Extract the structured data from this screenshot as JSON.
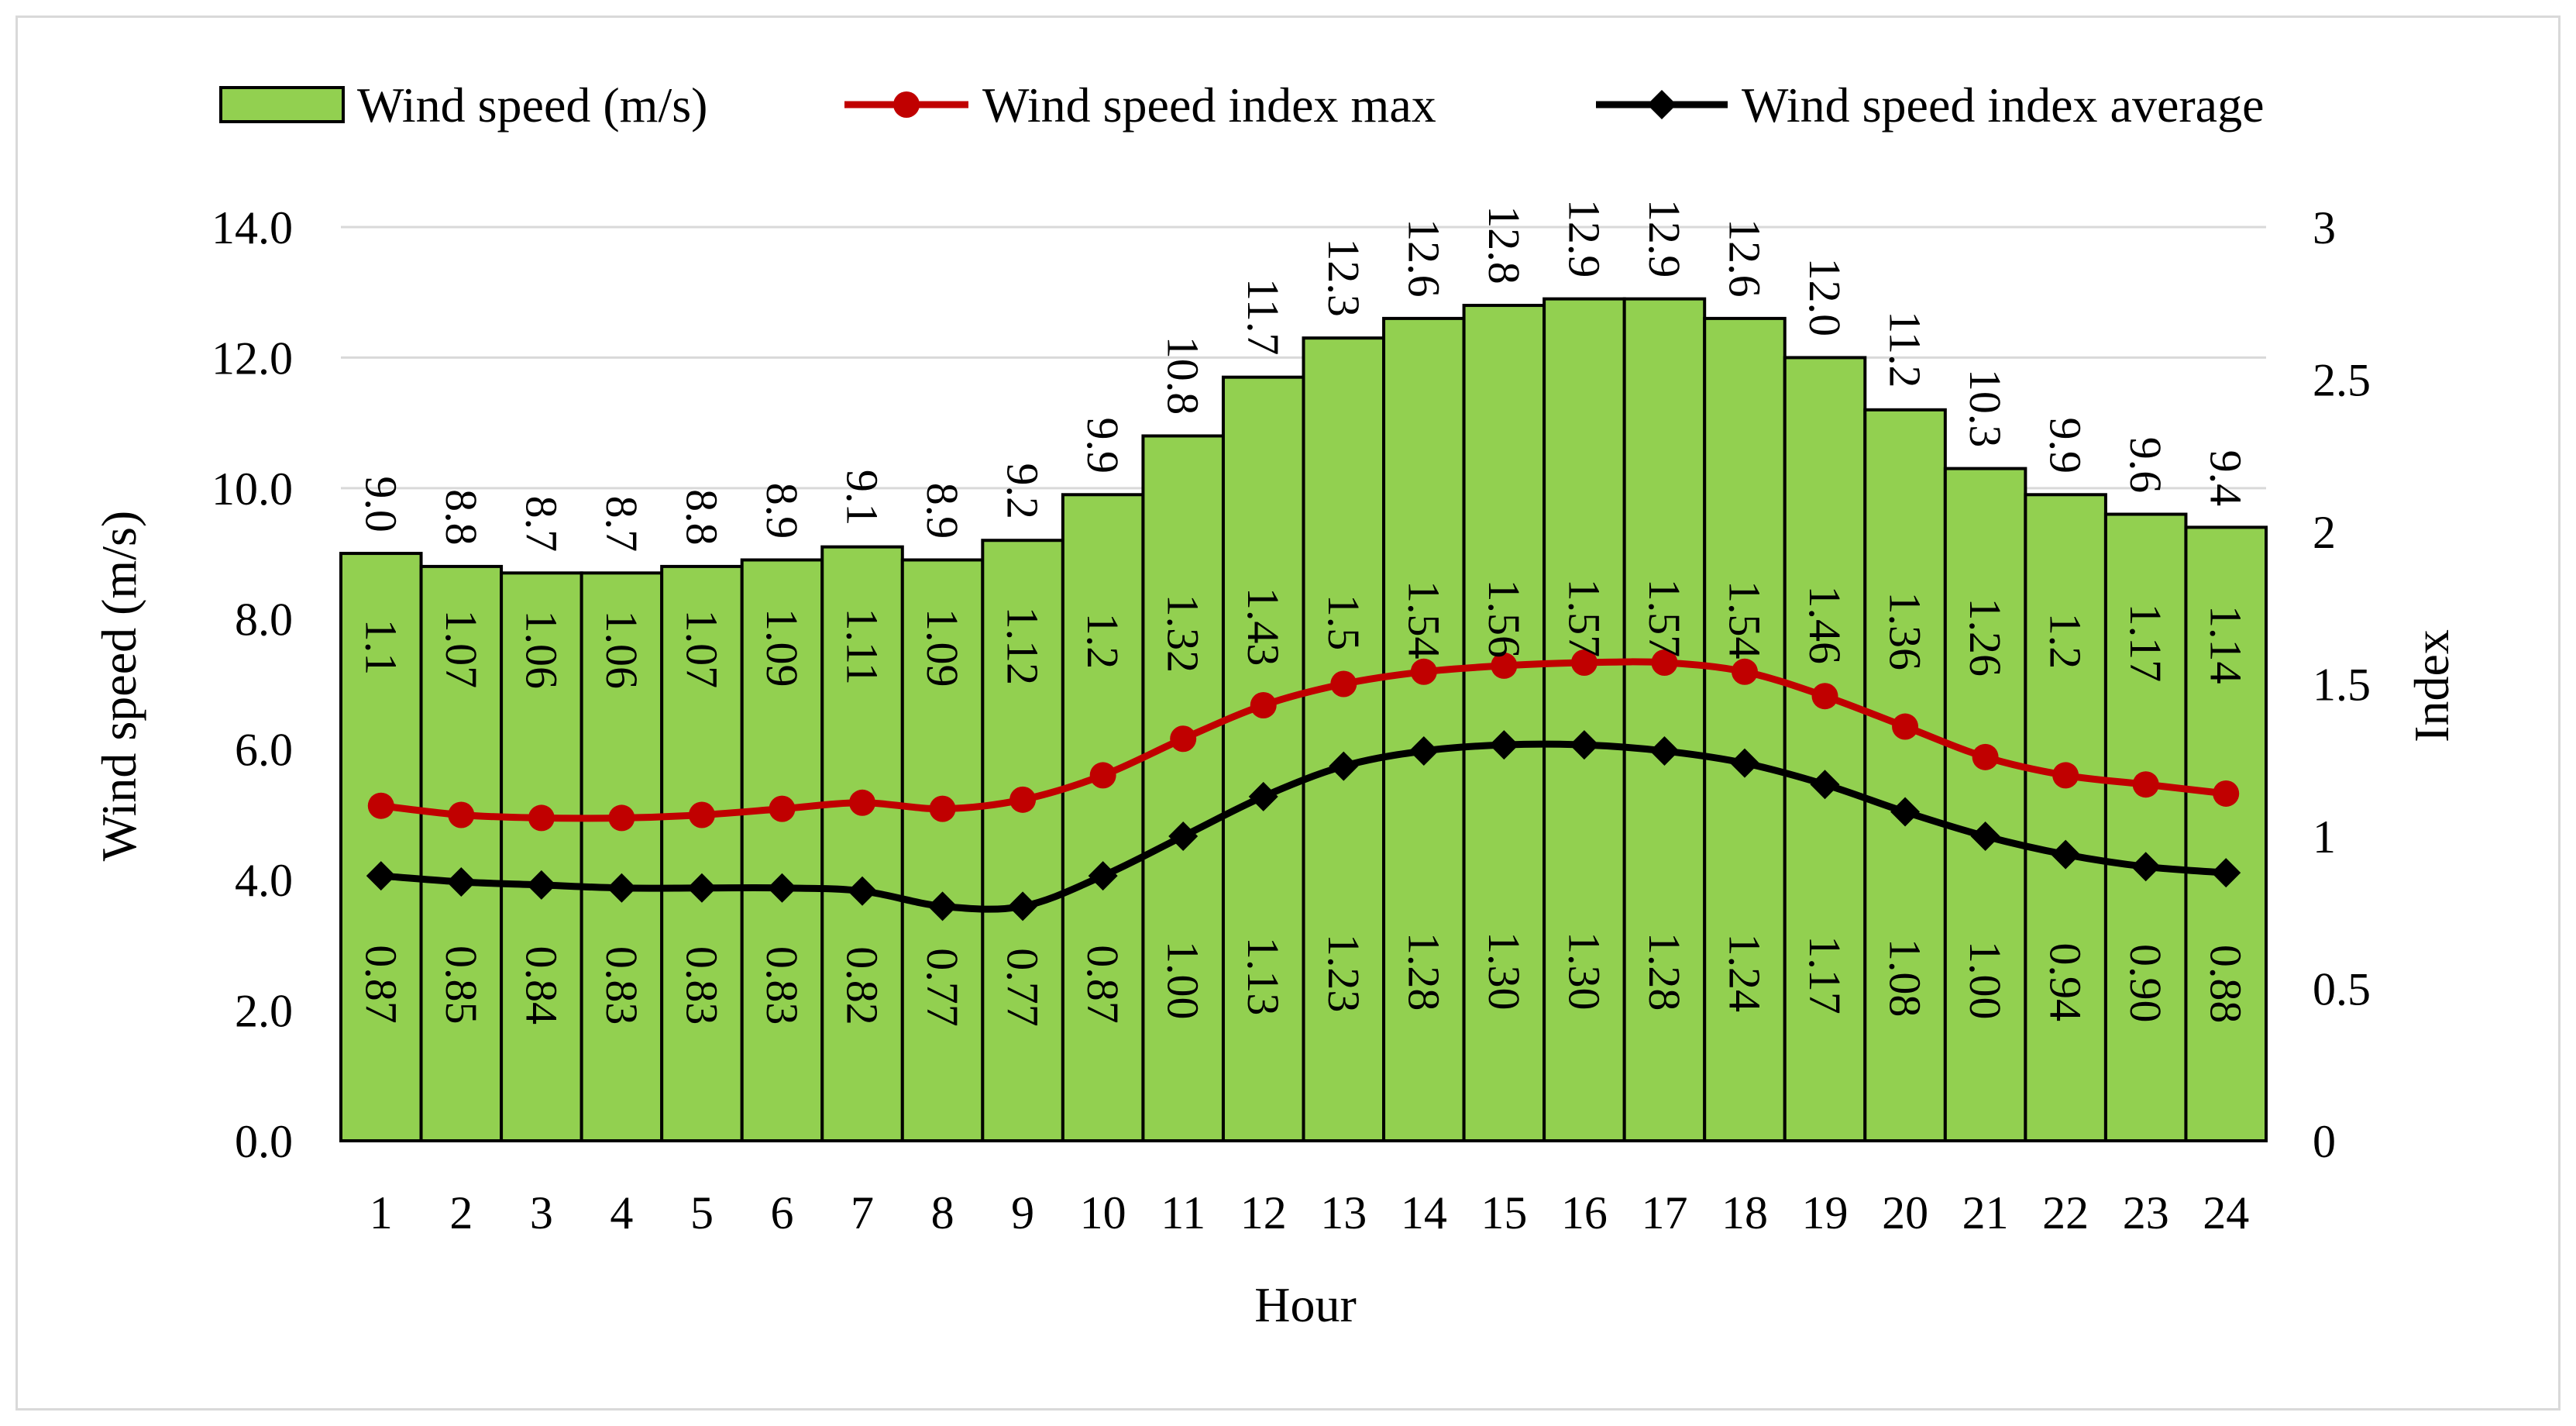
{
  "chart_data": {
    "type": "bar",
    "title": "",
    "xlabel": "Hour",
    "ylabel": "Wind speed (m/s)",
    "y2label": "Index",
    "ylim": [
      0,
      14
    ],
    "y2lim": [
      0,
      3
    ],
    "yticks": [
      "0.0",
      "2.0",
      "4.0",
      "6.0",
      "8.0",
      "10.0",
      "12.0",
      "14.0"
    ],
    "y2ticks": [
      "0",
      "0.5",
      "1",
      "1.5",
      "2",
      "2.5",
      "3"
    ],
    "grid": true,
    "legend_position": "top",
    "categories": [
      "1",
      "2",
      "3",
      "4",
      "5",
      "6",
      "7",
      "8",
      "9",
      "10",
      "11",
      "12",
      "13",
      "14",
      "15",
      "16",
      "17",
      "18",
      "19",
      "20",
      "21",
      "22",
      "23",
      "24"
    ],
    "series": [
      {
        "name": "Wind speed (m/s)",
        "kind": "bar",
        "axis": "left",
        "color": "#92d050",
        "values": [
          9.0,
          8.8,
          8.7,
          8.7,
          8.8,
          8.9,
          9.1,
          8.9,
          9.2,
          9.9,
          10.8,
          11.7,
          12.3,
          12.6,
          12.8,
          12.9,
          12.9,
          12.6,
          12.0,
          11.2,
          10.3,
          9.9,
          9.6,
          9.4
        ],
        "labels": [
          "9.0",
          "8.8",
          "8.7",
          "8.7",
          "8.8",
          "8.9",
          "9.1",
          "8.9",
          "9.2",
          "9.9",
          "10.8",
          "11.7",
          "12.3",
          "12.6",
          "12.8",
          "12.9",
          "12.9",
          "12.6",
          "12.0",
          "11.2",
          "10.3",
          "9.9",
          "9.6",
          "9.4"
        ]
      },
      {
        "name": "Wind speed  index max",
        "kind": "line",
        "axis": "right",
        "color": "#c00000",
        "marker": "circle",
        "values": [
          1.1,
          1.07,
          1.06,
          1.06,
          1.07,
          1.09,
          1.11,
          1.09,
          1.12,
          1.2,
          1.32,
          1.43,
          1.5,
          1.54,
          1.56,
          1.57,
          1.57,
          1.54,
          1.46,
          1.36,
          1.26,
          1.2,
          1.17,
          1.14
        ],
        "labels": [
          "1.1",
          "1.07",
          "1.06",
          "1.06",
          "1.07",
          "1.09",
          "1.11",
          "1.09",
          "1.12",
          "1.2",
          "1.32",
          "1.43",
          "1.5",
          "1.54",
          "1.56",
          "1.57",
          "1.57",
          "1.54",
          "1.46",
          "1.36",
          "1.26",
          "1.2",
          "1.17",
          "1.14"
        ]
      },
      {
        "name": "Wind speed index average",
        "kind": "line",
        "axis": "right",
        "color": "#000000",
        "marker": "diamond",
        "values": [
          0.87,
          0.85,
          0.84,
          0.83,
          0.83,
          0.83,
          0.82,
          0.77,
          0.77,
          0.87,
          1.0,
          1.13,
          1.23,
          1.28,
          1.3,
          1.3,
          1.28,
          1.24,
          1.17,
          1.08,
          1.0,
          0.94,
          0.9,
          0.88
        ],
        "labels": [
          "0.87",
          "0.85",
          "0.84",
          "0.83",
          "0.83",
          "0.83",
          "0.82",
          "0.77",
          "0.77",
          "0.87",
          "1.00",
          "1.13",
          "1.23",
          "1.28",
          "1.30",
          "1.30",
          "1.28",
          "1.24",
          "1.17",
          "1.08",
          "1.00",
          "0.94",
          "0.90",
          "0.88"
        ]
      }
    ]
  }
}
